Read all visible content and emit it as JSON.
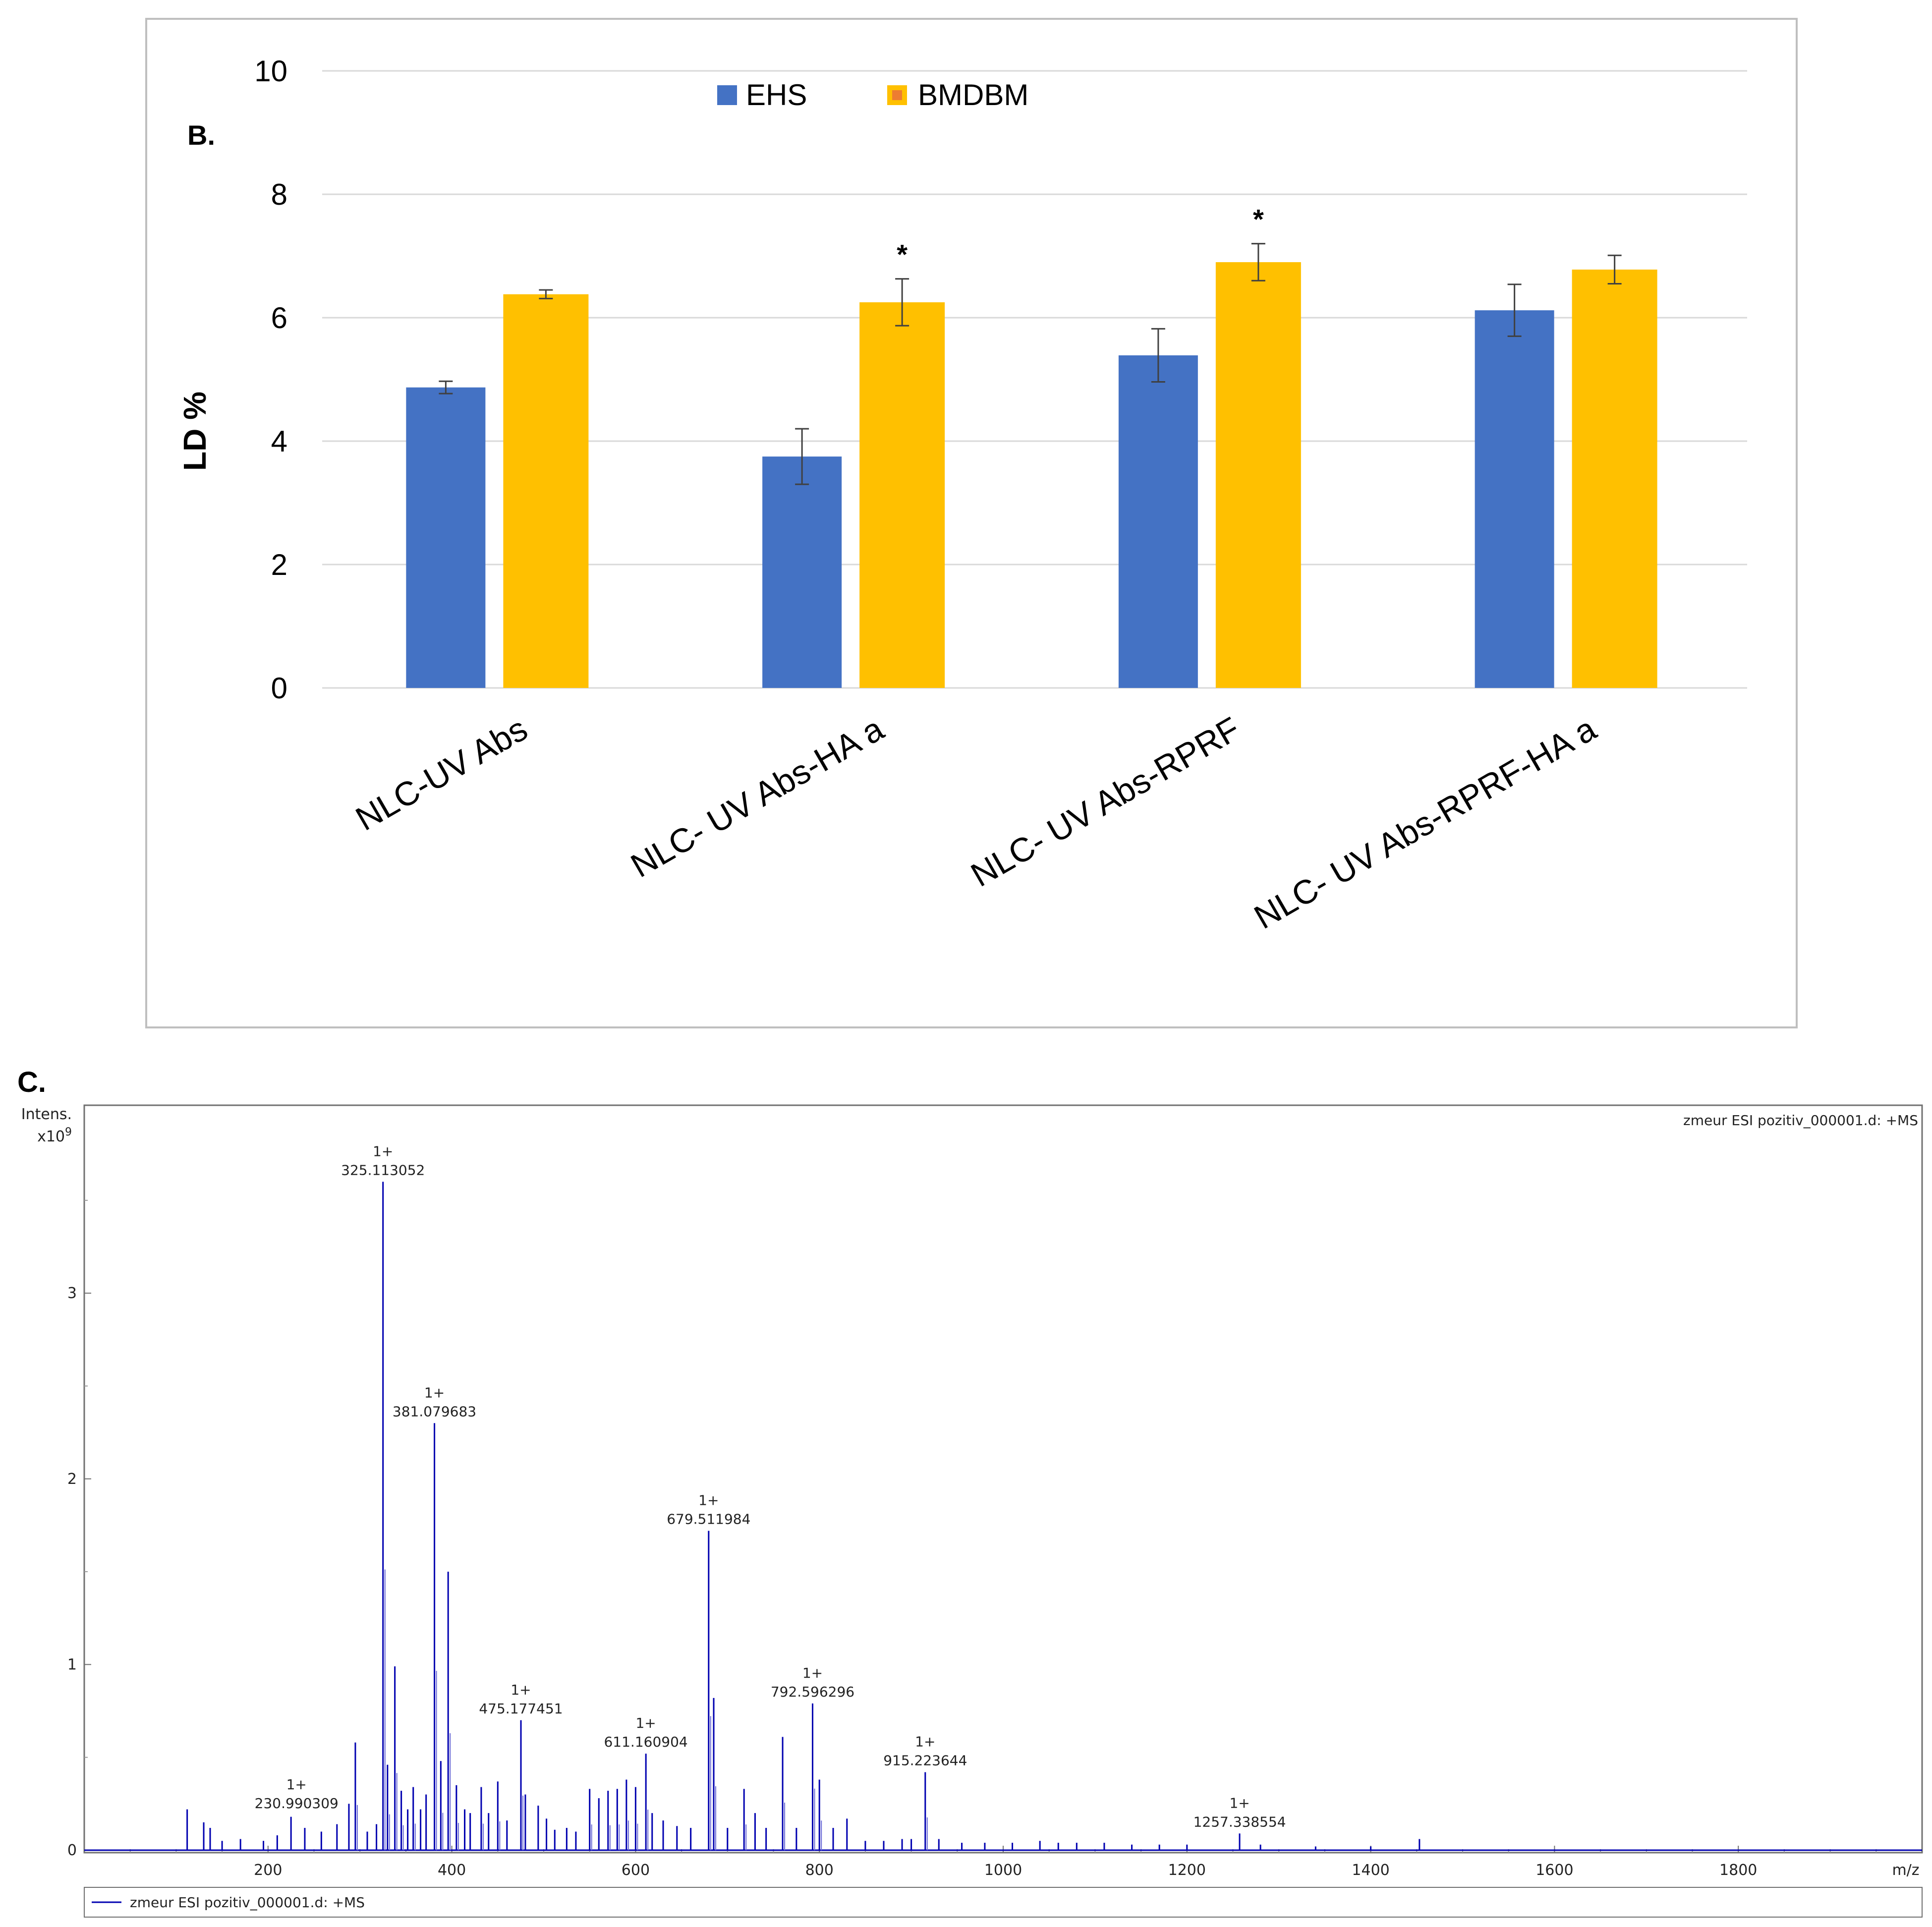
{
  "colors": {
    "ehs": "#4472C4",
    "bmdbm": "#FFC000",
    "spectrum": "#0000B0",
    "grid": "#D9D9D9",
    "frame": "#BFBFBF"
  },
  "panel_b": {
    "label": "B.",
    "legend": [
      {
        "name": "EHS",
        "color_key": "ehs"
      },
      {
        "name": "BMDBM",
        "color_key": "bmdbm"
      }
    ]
  },
  "panel_c": {
    "label": "C.",
    "y_title_line1": "Intens.",
    "y_title_line2": "x10",
    "y_title_exp": "9",
    "x_title": "m/z",
    "trace_label": "zmeur ESI pozitiv_000001.d: +MS",
    "legend_label": "zmeur ESI pozitiv_000001.d: +MS"
  },
  "chart_data": [
    {
      "type": "bar",
      "title": "",
      "xlabel": "",
      "ylabel": "LD %",
      "ylim": [
        0,
        10
      ],
      "yticks": [
        0,
        2,
        4,
        6,
        8,
        10
      ],
      "grid": true,
      "legend_position": "top",
      "categories": [
        "NLC-UV Abs",
        "NLC- UV Abs-HA a",
        "NLC- UV Abs-RPRF",
        "NLC- UV Abs-RPRF-HA a"
      ],
      "series": [
        {
          "name": "EHS",
          "values": [
            4.87,
            3.75,
            5.39,
            6.12
          ],
          "errors": [
            0.1,
            0.45,
            0.43,
            0.42
          ],
          "significance": [
            "",
            "",
            "",
            ""
          ]
        },
        {
          "name": "BMDBM",
          "values": [
            6.38,
            6.25,
            6.9,
            6.78
          ],
          "errors": [
            0.07,
            0.38,
            0.3,
            0.23
          ],
          "significance": [
            "",
            "*",
            "*",
            ""
          ]
        }
      ]
    },
    {
      "type": "line",
      "title": "",
      "xlabel": "m/z",
      "ylabel": "Intens. x10^9",
      "xlim": [
        0,
        2000
      ],
      "ylim": [
        0,
        3.9
      ],
      "xticks": [
        200,
        400,
        600,
        800,
        1000,
        1200,
        1400,
        1600,
        1800
      ],
      "yticks": [
        0,
        1,
        2,
        3
      ],
      "series": [
        {
          "name": "zmeur ESI pozitiv_000001.d: +MS",
          "mz": [
            112,
            130,
            137,
            150,
            170,
            195,
            210,
            225,
            240,
            258,
            275,
            288,
            295,
            308,
            318,
            325.1,
            330,
            338,
            345,
            352,
            358,
            366,
            372,
            381.1,
            388,
            396,
            405,
            414,
            420,
            432,
            440,
            450,
            460,
            475.2,
            480,
            494,
            503,
            512,
            525,
            535,
            550,
            560,
            570,
            580,
            590,
            600,
            611.2,
            618,
            630,
            645,
            660,
            679.5,
            685,
            700,
            718,
            730,
            742,
            760,
            775,
            792.6,
            800,
            815,
            830,
            850,
            870,
            890,
            900,
            915.2,
            930,
            955,
            980,
            1010,
            1040,
            1060,
            1080,
            1110,
            1140,
            1170,
            1200,
            1257.3,
            1280,
            1340,
            1400,
            1453
          ],
          "intensity": [
            0.22,
            0.15,
            0.12,
            0.05,
            0.06,
            0.05,
            0.08,
            0.18,
            0.12,
            0.1,
            0.14,
            0.25,
            0.58,
            0.1,
            0.14,
            3.6,
            0.46,
            0.99,
            0.32,
            0.22,
            0.34,
            0.22,
            0.3,
            2.3,
            0.48,
            1.5,
            0.35,
            0.22,
            0.2,
            0.34,
            0.2,
            0.37,
            0.16,
            0.7,
            0.3,
            0.24,
            0.17,
            0.11,
            0.12,
            0.1,
            0.33,
            0.28,
            0.32,
            0.33,
            0.38,
            0.34,
            0.52,
            0.2,
            0.16,
            0.13,
            0.12,
            1.72,
            0.82,
            0.12,
            0.33,
            0.2,
            0.12,
            0.61,
            0.12,
            0.79,
            0.38,
            0.12,
            0.17,
            0.05,
            0.05,
            0.06,
            0.06,
            0.42,
            0.06,
            0.04,
            0.04,
            0.04,
            0.05,
            0.04,
            0.04,
            0.04,
            0.03,
            0.03,
            0.03,
            0.09,
            0.03,
            0.02,
            0.02,
            0.06
          ]
        }
      ],
      "annotations": [
        {
          "mz": 230.990309,
          "charge": "1+",
          "label": "230.990309",
          "intensity": 0.19
        },
        {
          "mz": 325.113052,
          "charge": "1+",
          "label": "325.113052",
          "intensity": 3.6
        },
        {
          "mz": 381.079683,
          "charge": "1+",
          "label": "381.079683",
          "intensity": 2.3
        },
        {
          "mz": 475.177451,
          "charge": "1+",
          "label": "475.177451",
          "intensity": 0.7
        },
        {
          "mz": 611.160904,
          "charge": "1+",
          "label": "611.160904",
          "intensity": 0.52
        },
        {
          "mz": 679.511984,
          "charge": "1+",
          "label": "679.511984",
          "intensity": 1.72
        },
        {
          "mz": 792.596296,
          "charge": "1+",
          "label": "792.596296",
          "intensity": 0.79
        },
        {
          "mz": 915.223644,
          "charge": "1+",
          "label": "915.223644",
          "intensity": 0.42
        },
        {
          "mz": 1257.338554,
          "charge": "1+",
          "label": "1257.338554",
          "intensity": 0.09
        }
      ]
    }
  ]
}
